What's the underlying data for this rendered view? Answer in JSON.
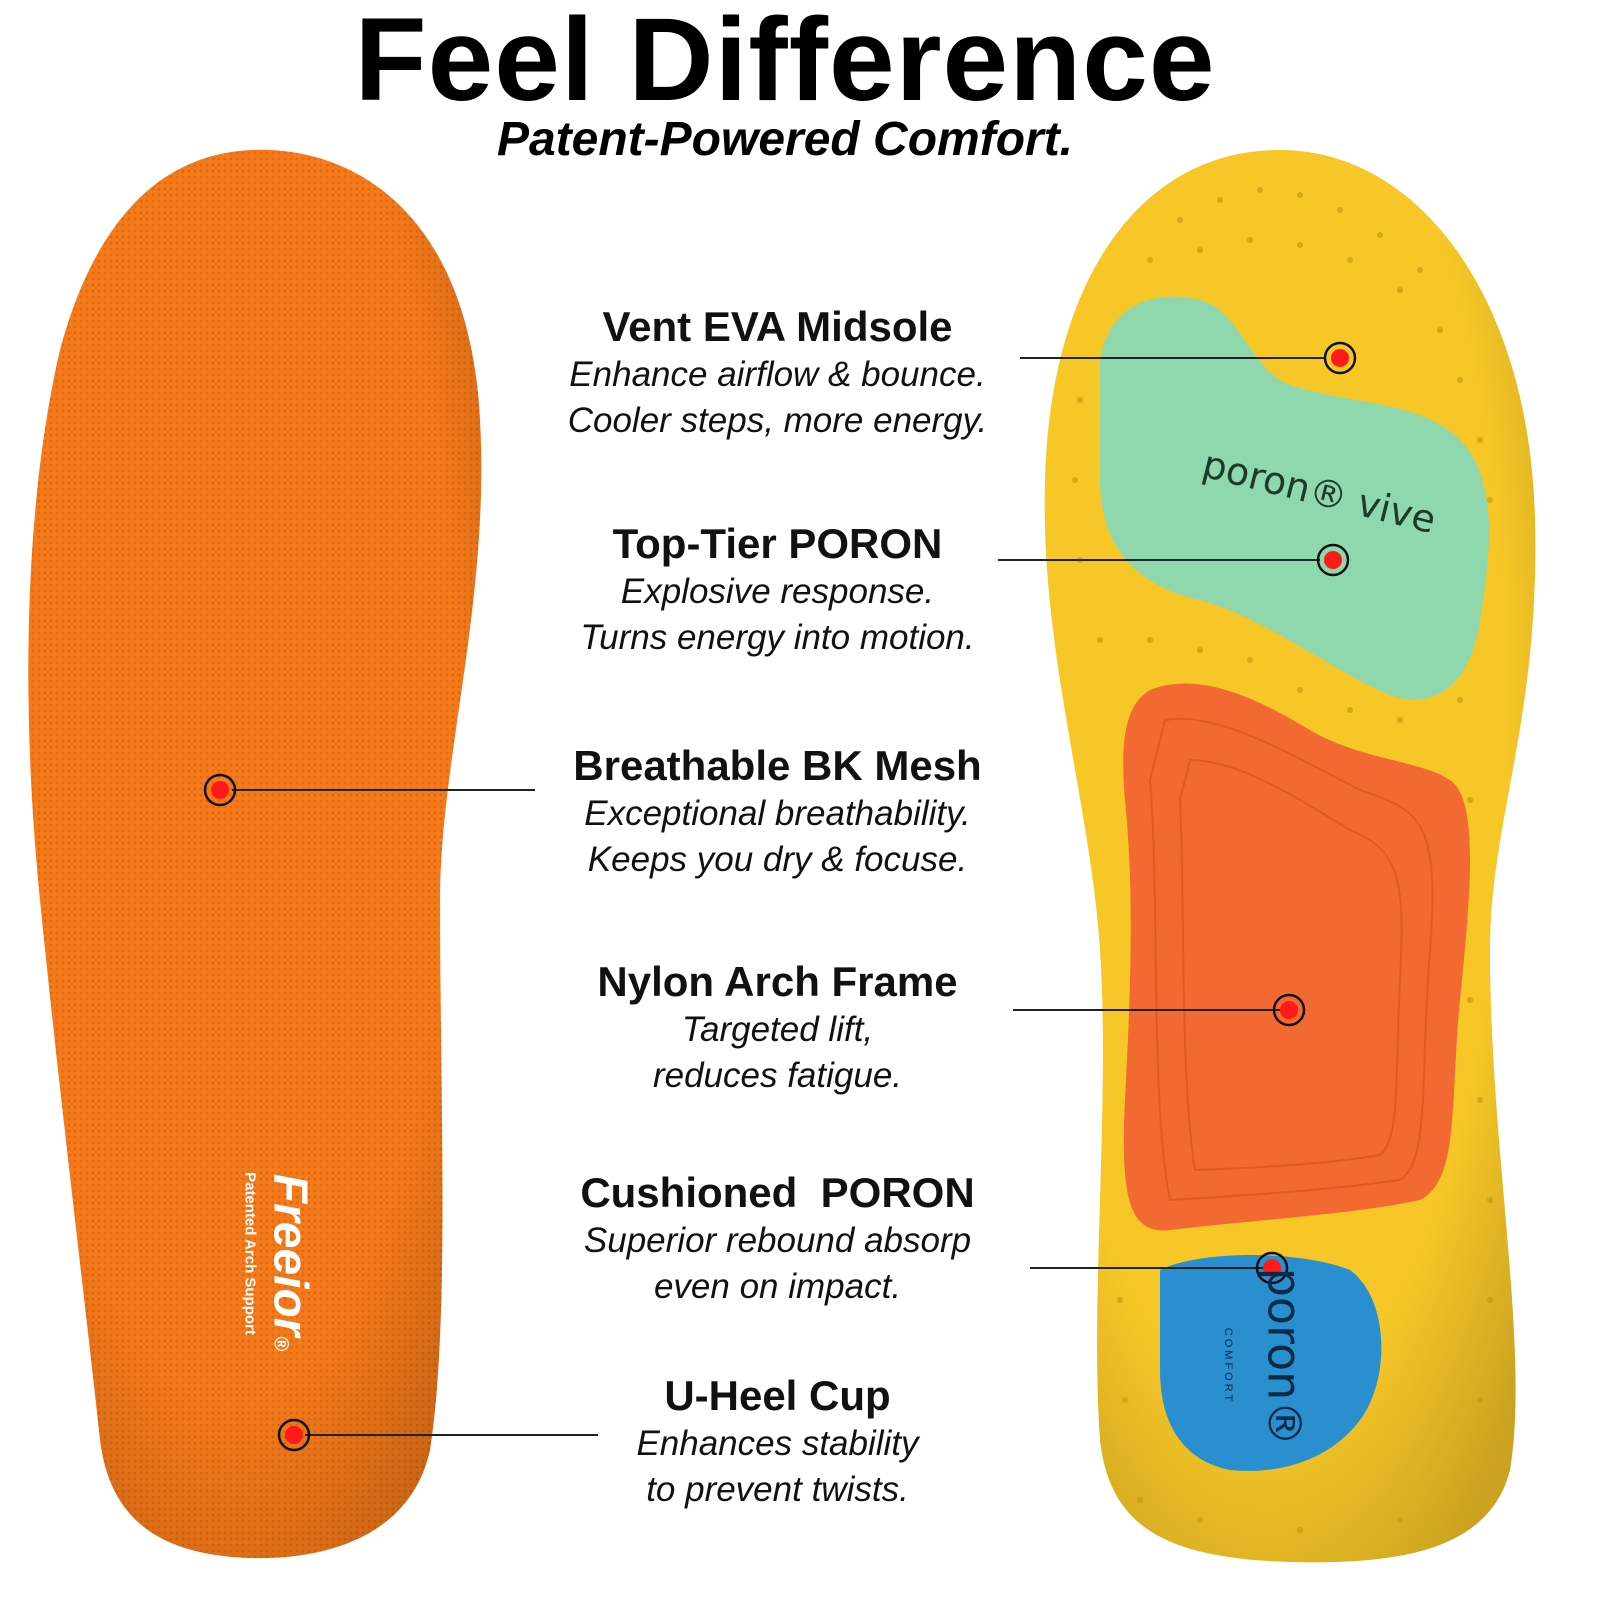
{
  "header": {
    "title": "Feel Difference",
    "subtitle": "Patent-Powered Comfort."
  },
  "features": [
    {
      "title": "Vent EVA Midsole",
      "lines": [
        "Enhance airflow & bounce.",
        "Cooler steps, more energy."
      ]
    },
    {
      "title": "Top-Tier PORON",
      "lines": [
        "Explosive response.",
        "Turns energy into motion."
      ]
    },
    {
      "title": "Breathable BK Mesh",
      "lines": [
        "Exceptional breathability.",
        "Keeps you dry & focuse."
      ]
    },
    {
      "title": "Nylon Arch Frame",
      "lines": [
        "Targeted lift,",
        "reduces fatigue."
      ]
    },
    {
      "title": "Cushioned  PORON",
      "lines": [
        "Superior rebound absorp",
        "even on impact."
      ]
    },
    {
      "title": "U-Heel Cup",
      "lines": [
        "Enhances stability",
        "to prevent twists."
      ]
    }
  ],
  "left_insole": {
    "brand": "Freeior",
    "registered": "®",
    "tagline": "Patented Arch Support"
  },
  "right_insole": {
    "logo_top": "poron® vive",
    "logo_heel": "poron®",
    "logo_heel_sub": "COMFORT"
  },
  "colors": {
    "mesh": "#f47a1a",
    "base": "#f7c727",
    "toe_pad": "#8fd8ad",
    "arch_pad": "#f26a32",
    "heel_pad": "#2a8fcf",
    "marker": "#ff1a1a"
  }
}
